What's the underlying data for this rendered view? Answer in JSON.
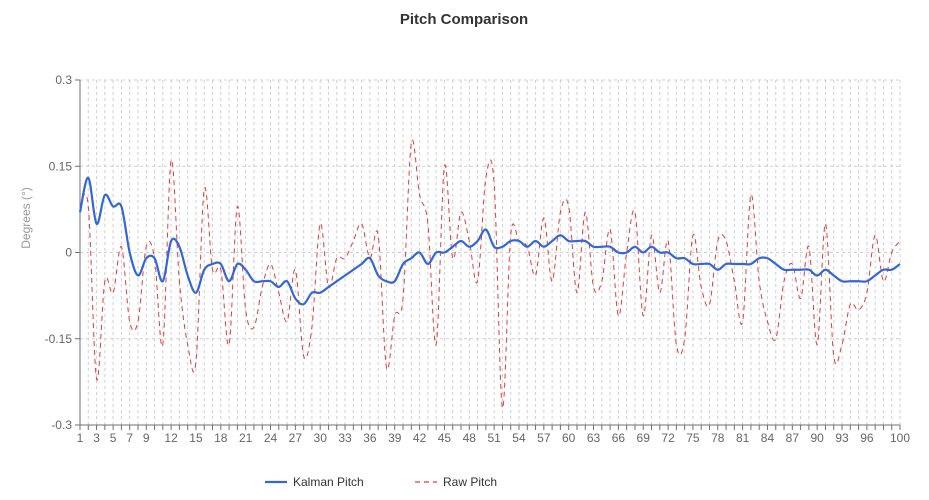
{
  "chart_data": {
    "type": "line",
    "title": "Pitch Comparison",
    "xlabel": "",
    "ylabel": "Degrees (°)",
    "ylim": [
      -0.3,
      0.3
    ],
    "yticks": [
      -0.3,
      -0.15,
      0,
      0.15,
      0.3
    ],
    "ytick_labels": [
      "-0.3",
      "-0.15",
      "0",
      "0.15",
      "0.3"
    ],
    "xlim": [
      1,
      100
    ],
    "xtick_labels": [
      1,
      3,
      5,
      7,
      9,
      12,
      15,
      18,
      21,
      24,
      27,
      30,
      33,
      36,
      39,
      42,
      45,
      48,
      51,
      54,
      57,
      60,
      63,
      66,
      69,
      72,
      75,
      78,
      81,
      84,
      87,
      90,
      93,
      96,
      100
    ],
    "grid": true,
    "legend_position": "bottom",
    "x": [
      1,
      2,
      3,
      4,
      5,
      6,
      7,
      8,
      9,
      10,
      11,
      12,
      13,
      14,
      15,
      16,
      17,
      18,
      19,
      20,
      21,
      22,
      23,
      24,
      25,
      26,
      27,
      28,
      29,
      30,
      31,
      32,
      33,
      34,
      35,
      36,
      37,
      38,
      39,
      40,
      41,
      42,
      43,
      44,
      45,
      46,
      47,
      48,
      49,
      50,
      51,
      52,
      53,
      54,
      55,
      56,
      57,
      58,
      59,
      60,
      61,
      62,
      63,
      64,
      65,
      66,
      67,
      68,
      69,
      70,
      71,
      72,
      73,
      74,
      75,
      76,
      77,
      78,
      79,
      80,
      81,
      82,
      83,
      84,
      85,
      86,
      87,
      88,
      89,
      90,
      91,
      92,
      93,
      94,
      95,
      96,
      97,
      98,
      99,
      100
    ],
    "series": [
      {
        "name": "Kalman Pitch",
        "color": "#3366d6",
        "style": "solid",
        "values": [
          0.07,
          0.13,
          0.05,
          0.1,
          0.08,
          0.08,
          0.0,
          -0.04,
          -0.01,
          -0.01,
          -0.05,
          0.02,
          0.01,
          -0.04,
          -0.07,
          -0.03,
          -0.02,
          -0.02,
          -0.05,
          -0.02,
          -0.03,
          -0.05,
          -0.05,
          -0.05,
          -0.06,
          -0.05,
          -0.08,
          -0.09,
          -0.07,
          -0.07,
          -0.06,
          -0.05,
          -0.04,
          -0.03,
          -0.02,
          -0.01,
          -0.04,
          -0.05,
          -0.05,
          -0.02,
          -0.01,
          0.0,
          -0.02,
          0.0,
          0.0,
          0.01,
          0.02,
          0.01,
          0.02,
          0.04,
          0.01,
          0.01,
          0.02,
          0.02,
          0.01,
          0.02,
          0.01,
          0.02,
          0.03,
          0.02,
          0.02,
          0.02,
          0.01,
          0.01,
          0.01,
          0.0,
          0.0,
          0.01,
          0.0,
          0.01,
          0.0,
          0.0,
          -0.01,
          -0.01,
          -0.02,
          -0.02,
          -0.02,
          -0.03,
          -0.02,
          -0.02,
          -0.02,
          -0.02,
          -0.01,
          -0.01,
          -0.02,
          -0.03,
          -0.03,
          -0.03,
          -0.03,
          -0.04,
          -0.03,
          -0.04,
          -0.05,
          -0.05,
          -0.05,
          -0.05,
          -0.04,
          -0.03,
          -0.03,
          -0.02
        ]
      },
      {
        "name": "Raw Pitch",
        "color": "#e03c3c",
        "style": "dashed",
        "values": [
          0.08,
          0.08,
          -0.22,
          -0.05,
          -0.07,
          0.01,
          -0.12,
          -0.12,
          0.01,
          -0.01,
          -0.16,
          0.16,
          -0.05,
          -0.16,
          -0.19,
          0.11,
          -0.03,
          -0.03,
          -0.16,
          0.08,
          -0.1,
          -0.13,
          -0.06,
          -0.02,
          -0.07,
          -0.12,
          -0.03,
          -0.18,
          -0.13,
          0.05,
          -0.06,
          -0.01,
          -0.01,
          0.02,
          0.05,
          -0.01,
          0.03,
          -0.2,
          -0.11,
          -0.08,
          0.19,
          0.1,
          0.05,
          -0.16,
          0.15,
          -0.01,
          0.07,
          0.02,
          -0.05,
          0.13,
          0.12,
          -0.27,
          0.03,
          0.02,
          0.01,
          -0.04,
          0.06,
          -0.05,
          0.07,
          0.08,
          -0.07,
          0.07,
          -0.06,
          -0.05,
          0.04,
          -0.11,
          0.0,
          0.07,
          -0.11,
          0.03,
          -0.07,
          0.02,
          -0.16,
          -0.15,
          0.03,
          -0.06,
          -0.09,
          0.02,
          0.02,
          -0.05,
          -0.12,
          0.1,
          -0.05,
          -0.12,
          -0.15,
          -0.05,
          -0.02,
          -0.08,
          0.01,
          -0.16,
          0.05,
          -0.18,
          -0.16,
          -0.09,
          -0.1,
          -0.07,
          0.03,
          -0.05,
          0.0,
          0.02
        ]
      }
    ]
  }
}
